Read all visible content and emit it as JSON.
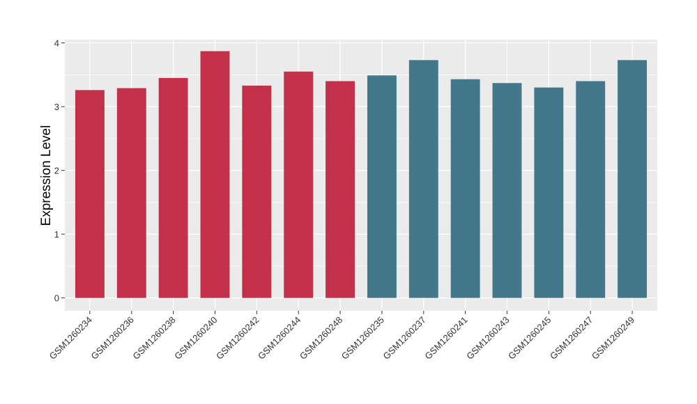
{
  "chart_data": {
    "type": "bar",
    "y_label": "Expression Level",
    "categories": [
      "GSM1260234",
      "GSM1260236",
      "GSM1260238",
      "GSM1260240",
      "GSM1260242",
      "GSM1260244",
      "GSM1260248",
      "GSM1260235",
      "GSM1260237",
      "GSM1260241",
      "GSM1260243",
      "GSM1260245",
      "GSM1260247",
      "GSM1260249"
    ],
    "values": [
      3.26,
      3.29,
      3.45,
      3.87,
      3.33,
      3.55,
      3.4,
      3.49,
      3.73,
      3.43,
      3.37,
      3.3,
      3.4,
      3.73
    ],
    "colors": [
      "#c3304a",
      "#c3304a",
      "#c3304a",
      "#c3304a",
      "#c3304a",
      "#c3304a",
      "#c3304a",
      "#42788a",
      "#42788a",
      "#42788a",
      "#42788a",
      "#42788a",
      "#42788a",
      "#42788a"
    ],
    "ylim": [
      -0.2,
      4.05
    ],
    "yticks": [
      0,
      1,
      2,
      3,
      4
    ],
    "grid": true,
    "minor_grid": true
  }
}
